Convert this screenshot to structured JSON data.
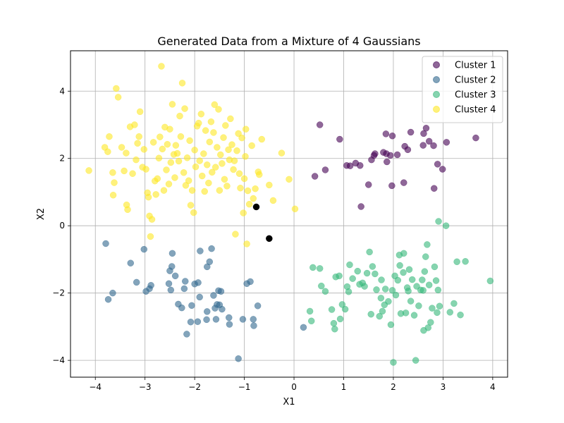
{
  "chart_data": {
    "type": "scatter",
    "title": "Generated Data from a Mixture of 4 Gaussians",
    "xlabel": "X1",
    "ylabel": "X2",
    "xlim": [
      -4.5,
      4.3
    ],
    "ylim": [
      -4.5,
      5.2
    ],
    "xticks": [
      -4,
      -3,
      -2,
      -1,
      0,
      1,
      2,
      3,
      4
    ],
    "yticks": [
      -4,
      -2,
      0,
      2,
      4
    ],
    "grid": true,
    "legend_position": "top-right",
    "series": [
      {
        "name": "Cluster 1",
        "color": "#440154",
        "points": [
          [
            0.52,
            3.0
          ],
          [
            0.92,
            2.57
          ],
          [
            0.63,
            1.66
          ],
          [
            0.42,
            1.47
          ],
          [
            1.06,
            1.79
          ],
          [
            1.13,
            1.78
          ],
          [
            1.24,
            1.86
          ],
          [
            1.33,
            1.79
          ],
          [
            1.35,
            0.57
          ],
          [
            1.5,
            1.22
          ],
          [
            1.56,
            1.96
          ],
          [
            1.61,
            2.09
          ],
          [
            1.63,
            2.14
          ],
          [
            1.8,
            2.18
          ],
          [
            1.86,
            2.14
          ],
          [
            1.87,
            1.9
          ],
          [
            1.85,
            2.73
          ],
          [
            1.94,
            2.09
          ],
          [
            1.98,
            2.67
          ],
          [
            1.97,
            1.19
          ],
          [
            2.08,
            2.11
          ],
          [
            2.21,
            1.28
          ],
          [
            2.23,
            2.36
          ],
          [
            2.29,
            2.26
          ],
          [
            2.35,
            2.78
          ],
          [
            2.6,
            2.39
          ],
          [
            2.61,
            2.74
          ],
          [
            2.66,
            2.9
          ],
          [
            2.72,
            2.51
          ],
          [
            2.81,
            2.38
          ],
          [
            2.82,
            1.11
          ],
          [
            2.89,
            1.83
          ],
          [
            2.99,
            1.68
          ],
          [
            3.07,
            2.48
          ],
          [
            3.66,
            2.61
          ]
        ]
      },
      {
        "name": "Cluster 2",
        "color": "#31688e",
        "points": [
          [
            -3.79,
            -0.53
          ],
          [
            -3.74,
            -2.19
          ],
          [
            -3.65,
            -2.0
          ],
          [
            -3.29,
            -1.11
          ],
          [
            -3.17,
            -1.68
          ],
          [
            -3.02,
            -0.7
          ],
          [
            -2.98,
            -1.95
          ],
          [
            -2.91,
            -1.87
          ],
          [
            -2.88,
            -1.77
          ],
          [
            -2.52,
            -1.72
          ],
          [
            -2.48,
            -1.91
          ],
          [
            -2.5,
            -1.34
          ],
          [
            -2.46,
            -1.21
          ],
          [
            -2.45,
            -0.82
          ],
          [
            -2.39,
            -1.49
          ],
          [
            -2.33,
            -2.33
          ],
          [
            -2.26,
            -2.44
          ],
          [
            -2.21,
            -1.87
          ],
          [
            -2.19,
            -1.65
          ],
          [
            -2.16,
            -3.22
          ],
          [
            -2.06,
            -2.37
          ],
          [
            -2.08,
            -2.86
          ],
          [
            -2.0,
            -1.73
          ],
          [
            -1.94,
            -2.85
          ],
          [
            -1.93,
            -1.69
          ],
          [
            -1.9,
            -2.12
          ],
          [
            -1.89,
            -0.75
          ],
          [
            -1.76,
            -2.79
          ],
          [
            -1.75,
            -2.55
          ],
          [
            -1.75,
            -1.22
          ],
          [
            -1.7,
            -1.07
          ],
          [
            -1.66,
            -0.68
          ],
          [
            -1.62,
            -2.07
          ],
          [
            -1.59,
            -2.45
          ],
          [
            -1.57,
            -2.78
          ],
          [
            -1.55,
            -2.34
          ],
          [
            -1.52,
            -1.93
          ],
          [
            -1.5,
            -2.35
          ],
          [
            -1.47,
            -1.95
          ],
          [
            -1.45,
            -2.48
          ],
          [
            -1.3,
            -2.93
          ],
          [
            -1.31,
            -2.73
          ],
          [
            -1.12,
            -3.95
          ],
          [
            -1.03,
            -2.78
          ],
          [
            -0.95,
            -1.72
          ],
          [
            -0.88,
            -1.66
          ],
          [
            -0.82,
            -2.78
          ],
          [
            -0.81,
            -2.97
          ],
          [
            -0.73,
            -2.38
          ],
          [
            0.19,
            -3.02
          ]
        ]
      },
      {
        "name": "Cluster 3",
        "color": "#35b779",
        "points": [
          [
            0.32,
            -2.54
          ],
          [
            0.35,
            -2.83
          ],
          [
            0.38,
            -1.24
          ],
          [
            0.52,
            -1.27
          ],
          [
            0.55,
            -1.79
          ],
          [
            0.63,
            -1.95
          ],
          [
            0.76,
            -2.49
          ],
          [
            0.8,
            -2.9
          ],
          [
            0.82,
            -3.07
          ],
          [
            0.84,
            -1.52
          ],
          [
            0.91,
            -1.49
          ],
          [
            0.93,
            -2.77
          ],
          [
            0.97,
            -2.34
          ],
          [
            1.03,
            -2.48
          ],
          [
            1.07,
            -1.81
          ],
          [
            1.1,
            -1.96
          ],
          [
            1.12,
            -1.16
          ],
          [
            1.18,
            -1.57
          ],
          [
            1.28,
            -1.35
          ],
          [
            1.32,
            -1.74
          ],
          [
            1.38,
            -1.7
          ],
          [
            1.42,
            -1.8
          ],
          [
            1.47,
            -1.41
          ],
          [
            1.52,
            -0.78
          ],
          [
            1.55,
            -2.63
          ],
          [
            1.58,
            -1.21
          ],
          [
            1.63,
            -1.43
          ],
          [
            1.66,
            -1.9
          ],
          [
            1.72,
            -2.69
          ],
          [
            1.75,
            -2.15
          ],
          [
            1.76,
            -1.61
          ],
          [
            1.78,
            -2.54
          ],
          [
            1.82,
            -2.35
          ],
          [
            1.84,
            -1.88
          ],
          [
            1.9,
            -2.25
          ],
          [
            1.95,
            -2.94
          ],
          [
            1.98,
            -1.92
          ],
          [
            2.0,
            -4.06
          ],
          [
            2.03,
            -1.49
          ],
          [
            2.05,
            -2.06
          ],
          [
            2.09,
            -1.62
          ],
          [
            2.12,
            -0.87
          ],
          [
            2.13,
            -1.18
          ],
          [
            2.15,
            -2.61
          ],
          [
            2.2,
            -1.39
          ],
          [
            2.21,
            -0.82
          ],
          [
            2.25,
            -2.59
          ],
          [
            2.28,
            -1.84
          ],
          [
            2.3,
            -1.94
          ],
          [
            2.32,
            -1.3
          ],
          [
            2.35,
            -2.24
          ],
          [
            2.38,
            -1.6
          ],
          [
            2.42,
            -2.66
          ],
          [
            2.45,
            -4.0
          ],
          [
            2.47,
            -1.8
          ],
          [
            2.51,
            -2.38
          ],
          [
            2.55,
            -1.91
          ],
          [
            2.58,
            -1.61
          ],
          [
            2.6,
            -1.92
          ],
          [
            2.61,
            -3.11
          ],
          [
            2.63,
            -1.36
          ],
          [
            2.65,
            -0.92
          ],
          [
            2.68,
            -0.56
          ],
          [
            2.7,
            -3.03
          ],
          [
            2.72,
            -1.76
          ],
          [
            2.75,
            -2.87
          ],
          [
            2.78,
            -2.45
          ],
          [
            2.83,
            -1.22
          ],
          [
            2.86,
            -1.63
          ],
          [
            2.88,
            -2.58
          ],
          [
            2.9,
            -1.91
          ],
          [
            2.93,
            -2.39
          ],
          [
            2.91,
            0.13
          ],
          [
            3.06,
            0.0
          ],
          [
            3.14,
            -2.57
          ],
          [
            3.22,
            -2.31
          ],
          [
            3.28,
            -1.07
          ],
          [
            3.35,
            -2.65
          ],
          [
            3.45,
            -1.06
          ],
          [
            3.95,
            -1.64
          ]
        ]
      },
      {
        "name": "Cluster 4",
        "color": "#fde725",
        "points": [
          [
            -4.13,
            1.64
          ],
          [
            -3.81,
            2.33
          ],
          [
            -3.75,
            2.2
          ],
          [
            -3.72,
            2.65
          ],
          [
            -3.65,
            1.58
          ],
          [
            -3.62,
            1.28
          ],
          [
            -3.64,
            0.91
          ],
          [
            -3.58,
            4.08
          ],
          [
            -3.54,
            3.82
          ],
          [
            -3.47,
            2.33
          ],
          [
            -3.42,
            1.63
          ],
          [
            -3.38,
            2.16
          ],
          [
            -3.37,
            0.62
          ],
          [
            -3.35,
            0.48
          ],
          [
            -3.3,
            2.94
          ],
          [
            -3.25,
            1.55
          ],
          [
            -3.21,
            3.0
          ],
          [
            -3.18,
            1.96
          ],
          [
            -3.15,
            2.45
          ],
          [
            -3.12,
            2.65
          ],
          [
            -3.1,
            3.39
          ],
          [
            -3.05,
            1.74
          ],
          [
            -3.02,
            2.27
          ],
          [
            -2.98,
            1.68
          ],
          [
            -2.95,
            0.98
          ],
          [
            -2.93,
            0.85
          ],
          [
            -2.91,
            0.29
          ],
          [
            -2.89,
            -0.32
          ],
          [
            -2.86,
            0.19
          ],
          [
            -2.83,
            2.48
          ],
          [
            -2.8,
            1.33
          ],
          [
            -2.78,
            0.93
          ],
          [
            -2.75,
            1.4
          ],
          [
            -2.72,
            2.01
          ],
          [
            -2.7,
            2.64
          ],
          [
            -2.67,
            4.74
          ],
          [
            -2.65,
            2.28
          ],
          [
            -2.62,
            1.05
          ],
          [
            -2.6,
            2.93
          ],
          [
            -2.57,
            1.66
          ],
          [
            -2.55,
            2.42
          ],
          [
            -2.52,
            1.24
          ],
          [
            -2.5,
            2.87
          ],
          [
            -2.48,
            1.88
          ],
          [
            -2.45,
            3.61
          ],
          [
            -2.42,
            2.12
          ],
          [
            -2.4,
            1.43
          ],
          [
            -2.38,
            2.39
          ],
          [
            -2.35,
            2.15
          ],
          [
            -2.32,
            1.92
          ],
          [
            -2.3,
            3.26
          ],
          [
            -2.28,
            2.65
          ],
          [
            -2.25,
            4.24
          ],
          [
            -2.22,
            1.58
          ],
          [
            -2.2,
            3.48
          ],
          [
            -2.18,
            1.2
          ],
          [
            -2.15,
            2.02
          ],
          [
            -2.12,
            1.34
          ],
          [
            -2.1,
            2.53
          ],
          [
            -2.08,
            0.61
          ],
          [
            -2.05,
            1.05
          ],
          [
            -2.02,
            0.39
          ],
          [
            -2.0,
            2.25
          ],
          [
            -1.98,
            1.75
          ],
          [
            -1.95,
            2.96
          ],
          [
            -1.92,
            3.05
          ],
          [
            -1.9,
            1.93
          ],
          [
            -1.87,
            3.32
          ],
          [
            -1.85,
            1.48
          ],
          [
            -1.82,
            2.14
          ],
          [
            -1.8,
            1.02
          ],
          [
            -1.78,
            2.83
          ],
          [
            -1.75,
            1.81
          ],
          [
            -1.72,
            1.27
          ],
          [
            -1.7,
            2.49
          ],
          [
            -1.67,
            3.09
          ],
          [
            -1.65,
            1.59
          ],
          [
            -1.62,
            2.77
          ],
          [
            -1.6,
            3.6
          ],
          [
            -1.58,
            1.74
          ],
          [
            -1.55,
            2.33
          ],
          [
            -1.52,
            3.46
          ],
          [
            -1.5,
            1.05
          ],
          [
            -1.48,
            2.11
          ],
          [
            -1.45,
            1.85
          ],
          [
            -1.42,
            2.62
          ],
          [
            -1.4,
            1.38
          ],
          [
            -1.38,
            2.98
          ],
          [
            -1.35,
            1.18
          ],
          [
            -1.32,
            2.26
          ],
          [
            -1.3,
            1.96
          ],
          [
            -1.28,
            3.18
          ],
          [
            -1.25,
            2.41
          ],
          [
            -1.22,
            1.67
          ],
          [
            -1.2,
            1.93
          ],
          [
            -1.18,
            -0.25
          ],
          [
            -1.15,
            2.23
          ],
          [
            -1.12,
            2.74
          ],
          [
            -1.1,
            1.55
          ],
          [
            -1.08,
            1.12
          ],
          [
            -1.05,
            2.61
          ],
          [
            -1.02,
            0.38
          ],
          [
            -1.0,
            1.4
          ],
          [
            -0.98,
            2.06
          ],
          [
            -0.97,
            2.87
          ],
          [
            -0.95,
            -0.54
          ],
          [
            -0.93,
            1.04
          ],
          [
            -0.9,
            0.64
          ],
          [
            -0.85,
            2.38
          ],
          [
            -0.82,
            0.81
          ],
          [
            -0.78,
            1.1
          ],
          [
            -0.72,
            1.6
          ],
          [
            -0.7,
            1.52
          ],
          [
            -0.65,
            2.57
          ],
          [
            -0.5,
            1.21
          ],
          [
            -0.42,
            0.75
          ],
          [
            -0.25,
            2.16
          ],
          [
            -0.1,
            1.38
          ],
          [
            0.02,
            0.5
          ]
        ]
      },
      {
        "name": "",
        "color": "#000000",
        "points": [
          [
            -0.76,
            0.56
          ],
          [
            -0.5,
            -0.38
          ]
        ]
      }
    ]
  }
}
